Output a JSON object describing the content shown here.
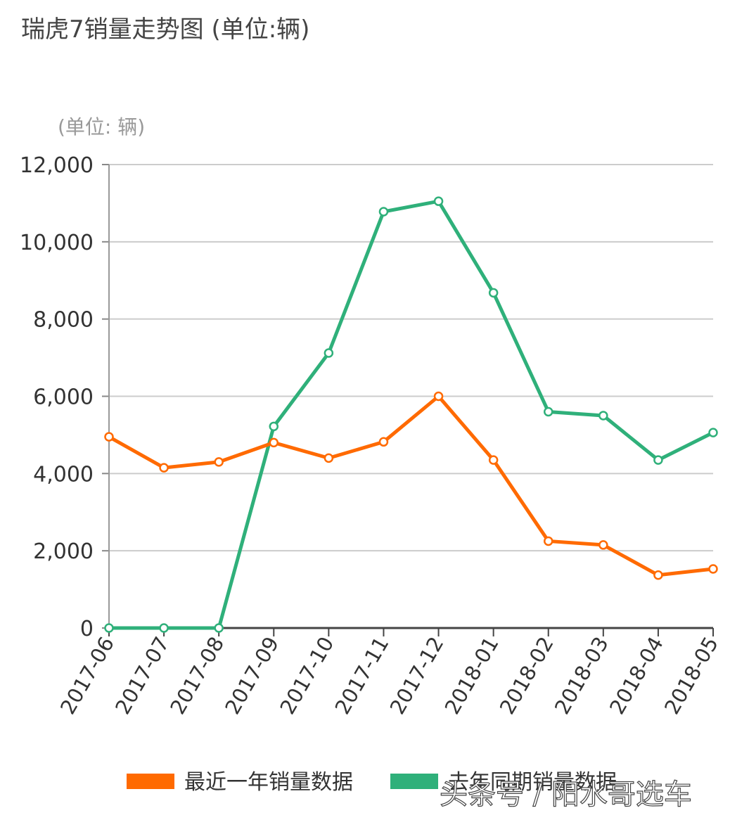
{
  "chart_data": {
    "type": "line",
    "title": "瑞虎7销量走势图 (单位:辆)",
    "unit_label": "(单位: 辆)",
    "categories": [
      "2017-06",
      "2017-07",
      "2017-08",
      "2017-09",
      "2017-10",
      "2017-11",
      "2017-12",
      "2018-01",
      "2018-02",
      "2018-03",
      "2018-04",
      "2018-05"
    ],
    "y_ticks": [
      "0",
      "2,000",
      "4,000",
      "6,000",
      "8,000",
      "10,000",
      "12,000"
    ],
    "ylim": [
      0,
      12000
    ],
    "grid": true,
    "legend_position": "bottom",
    "series": [
      {
        "name": "最近一年销量数据",
        "color": "#ff6a00",
        "values": [
          4950,
          4150,
          4300,
          4800,
          4400,
          4820,
          6000,
          4350,
          2250,
          2150,
          1370,
          1530
        ]
      },
      {
        "name": "去年同期销量数据",
        "color": "#2fb07a",
        "values": [
          0,
          0,
          0,
          5220,
          7120,
          10780,
          11050,
          8680,
          5600,
          5500,
          4350,
          5060
        ]
      }
    ]
  },
  "watermark": "头条号 / 阳水哥选车"
}
